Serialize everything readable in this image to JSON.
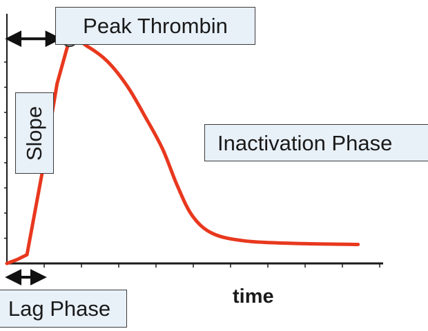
{
  "chart_data": {
    "type": "line",
    "xlabel": "time",
    "ylabel": "",
    "annotations": {
      "peak": "Peak Thrombin",
      "inactivation": "Inactivation Phase",
      "slope": "Slope",
      "lag": "Lag Phase"
    },
    "series": [
      {
        "color": "#e8381e",
        "points": [
          [
            0,
            0
          ],
          [
            4,
            1.5
          ],
          [
            8,
            3.5
          ],
          [
            14,
            36
          ],
          [
            20,
            72
          ],
          [
            25,
            90
          ],
          [
            32,
            87
          ],
          [
            40,
            81
          ],
          [
            48,
            71
          ],
          [
            55,
            59
          ],
          [
            62,
            46
          ],
          [
            68,
            31
          ],
          [
            74,
            19
          ],
          [
            82,
            12
          ],
          [
            95,
            9
          ],
          [
            115,
            8
          ],
          [
            140,
            7.6
          ]
        ]
      }
    ],
    "peak_point": [
      25,
      90
    ],
    "xlim": [
      0,
      150
    ],
    "ylim": [
      0,
      100
    ],
    "grid": false,
    "x_ticks": 10,
    "y_ticks": 8
  }
}
